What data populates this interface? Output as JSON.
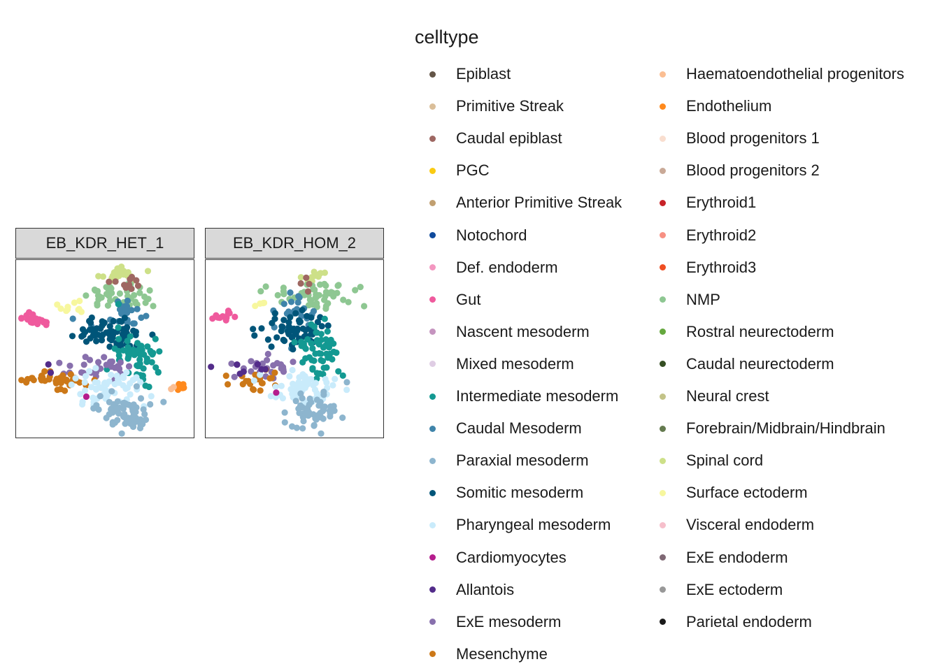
{
  "chart_data": {
    "type": "scatter",
    "facets": [
      "EB_KDR_HET_1",
      "EB_KDR_HOM_2"
    ],
    "legend": {
      "title": "celltype",
      "placement": "right",
      "entries": [
        {
          "label": "Epiblast",
          "color": "#635547"
        },
        {
          "label": "Primitive Streak",
          "color": "#DABE99"
        },
        {
          "label": "Caudal epiblast",
          "color": "#9E6762"
        },
        {
          "label": "PGC",
          "color": "#FACB12"
        },
        {
          "label": "Anterior Primitive Streak",
          "color": "#C19F70"
        },
        {
          "label": "Notochord",
          "color": "#0F4A9C"
        },
        {
          "label": "Def. endoderm",
          "color": "#F397C0"
        },
        {
          "label": "Gut",
          "color": "#EF5A9D"
        },
        {
          "label": "Nascent mesoderm",
          "color": "#C594BF"
        },
        {
          "label": "Mixed mesoderm",
          "color": "#DFCDE4"
        },
        {
          "label": "Intermediate mesoderm",
          "color": "#139992"
        },
        {
          "label": "Caudal Mesoderm",
          "color": "#3F84AA"
        },
        {
          "label": "Paraxial mesoderm",
          "color": "#8DB5CE"
        },
        {
          "label": "Somitic mesoderm",
          "color": "#005579"
        },
        {
          "label": "Pharyngeal mesoderm",
          "color": "#C9EBFB"
        },
        {
          "label": "Cardiomyocytes",
          "color": "#B51D8D"
        },
        {
          "label": "Allantois",
          "color": "#532C8A"
        },
        {
          "label": "ExE mesoderm",
          "color": "#8870AD"
        },
        {
          "label": "Mesenchyme",
          "color": "#CC7818"
        },
        {
          "label": "Haematoendothelial progenitors",
          "color": "#FBBE92"
        },
        {
          "label": "Endothelium",
          "color": "#FF891C"
        },
        {
          "label": "Blood progenitors 1",
          "color": "#F9DECF"
        },
        {
          "label": "Blood progenitors 2",
          "color": "#C9A997"
        },
        {
          "label": "Erythroid1",
          "color": "#C72228"
        },
        {
          "label": "Erythroid2",
          "color": "#F79083"
        },
        {
          "label": "Erythroid3",
          "color": "#EF4E22"
        },
        {
          "label": "NMP",
          "color": "#8EC792"
        },
        {
          "label": "Rostral neurectoderm",
          "color": "#65A83E"
        },
        {
          "label": "Caudal neurectoderm",
          "color": "#354E23"
        },
        {
          "label": "Neural crest",
          "color": "#C3C388"
        },
        {
          "label": "Forebrain/Midbrain/Hindbrain",
          "color": "#647A4F"
        },
        {
          "label": "Spinal cord",
          "color": "#CDE088"
        },
        {
          "label": "Surface ectoderm",
          "color": "#F7F79E"
        },
        {
          "label": "Visceral endoderm",
          "color": "#F6BFCB"
        },
        {
          "label": "ExE endoderm",
          "color": "#7F6874"
        },
        {
          "label": "ExE ectoderm",
          "color": "#989898"
        },
        {
          "label": "Parietal endoderm",
          "color": "#1A1A1A"
        }
      ]
    },
    "clusters": [
      {
        "celltype": "Spinal cord",
        "het": {
          "x": 0.57,
          "y": 0.08,
          "sx": 0.06,
          "sy": 0.025,
          "n": 28
        },
        "hom": {
          "x": 0.6,
          "y": 0.1,
          "sx": 0.05,
          "sy": 0.03,
          "n": 10
        }
      },
      {
        "celltype": "NMP",
        "het": {
          "x": 0.6,
          "y": 0.2,
          "sx": 0.11,
          "sy": 0.04,
          "n": 45
        },
        "hom": {
          "x": 0.6,
          "y": 0.19,
          "sx": 0.13,
          "sy": 0.035,
          "n": 50
        }
      },
      {
        "celltype": "Caudal epiblast",
        "het": {
          "x": 0.61,
          "y": 0.13,
          "sx": 0.05,
          "sy": 0.02,
          "n": 10
        },
        "hom": {
          "x": 0.55,
          "y": 0.14,
          "sx": 0.02,
          "sy": 0.02,
          "n": 4
        }
      },
      {
        "celltype": "Caudal Mesoderm",
        "het": {
          "x": 0.6,
          "y": 0.3,
          "sx": 0.07,
          "sy": 0.06,
          "n": 25
        },
        "hom": {
          "x": 0.5,
          "y": 0.28,
          "sx": 0.08,
          "sy": 0.07,
          "n": 25
        }
      },
      {
        "celltype": "Somitic mesoderm",
        "het": {
          "x": 0.53,
          "y": 0.41,
          "sx": 0.1,
          "sy": 0.05,
          "n": 70
        },
        "hom": {
          "x": 0.5,
          "y": 0.4,
          "sx": 0.1,
          "sy": 0.05,
          "n": 60
        }
      },
      {
        "celltype": "Intermediate mesoderm",
        "het": {
          "x": 0.68,
          "y": 0.54,
          "sx": 0.07,
          "sy": 0.07,
          "n": 55
        },
        "hom": {
          "x": 0.63,
          "y": 0.5,
          "sx": 0.07,
          "sy": 0.07,
          "n": 55
        }
      },
      {
        "celltype": "ExE mesoderm",
        "het": {
          "x": 0.44,
          "y": 0.6,
          "sx": 0.08,
          "sy": 0.03,
          "n": 30
        },
        "hom": {
          "x": 0.35,
          "y": 0.6,
          "sx": 0.09,
          "sy": 0.03,
          "n": 25
        }
      },
      {
        "celltype": "Mesenchyme",
        "het": {
          "x": 0.25,
          "y": 0.67,
          "sx": 0.09,
          "sy": 0.03,
          "n": 40
        },
        "hom": {
          "x": 0.28,
          "y": 0.67,
          "sx": 0.1,
          "sy": 0.03,
          "n": 20
        }
      },
      {
        "celltype": "Pharyngeal mesoderm",
        "het": {
          "x": 0.52,
          "y": 0.72,
          "sx": 0.1,
          "sy": 0.05,
          "n": 55
        },
        "hom": {
          "x": 0.53,
          "y": 0.72,
          "sx": 0.1,
          "sy": 0.05,
          "n": 60
        }
      },
      {
        "celltype": "Paraxial mesoderm",
        "het": {
          "x": 0.6,
          "y": 0.85,
          "sx": 0.08,
          "sy": 0.05,
          "n": 65
        },
        "hom": {
          "x": 0.6,
          "y": 0.85,
          "sx": 0.07,
          "sy": 0.05,
          "n": 55
        }
      },
      {
        "celltype": "Gut",
        "het": {
          "x": 0.11,
          "y": 0.33,
          "sx": 0.04,
          "sy": 0.015,
          "n": 18
        },
        "hom": {
          "x": 0.1,
          "y": 0.32,
          "sx": 0.03,
          "sy": 0.015,
          "n": 12
        }
      },
      {
        "celltype": "Surface ectoderm",
        "het": {
          "x": 0.3,
          "y": 0.26,
          "sx": 0.03,
          "sy": 0.015,
          "n": 10
        },
        "hom": {
          "x": 0.31,
          "y": 0.25,
          "sx": 0.02,
          "sy": 0.01,
          "n": 4
        }
      },
      {
        "celltype": "Endothelium",
        "het": {
          "x": 0.93,
          "y": 0.71,
          "sx": 0.02,
          "sy": 0.01,
          "n": 8
        },
        "hom": {
          "x": 0.88,
          "y": 0.6,
          "sx": 0.01,
          "sy": 0.01,
          "n": 0
        }
      },
      {
        "celltype": "Haematoendothelial progenitors",
        "het": {
          "x": 0.87,
          "y": 0.7,
          "sx": 0.01,
          "sy": 0.01,
          "n": 2
        },
        "hom": {
          "x": 0.87,
          "y": 0.6,
          "sx": 0.01,
          "sy": 0.01,
          "n": 0
        }
      },
      {
        "celltype": "Cardiomyocytes",
        "het": {
          "x": 0.4,
          "y": 0.76,
          "sx": 0.005,
          "sy": 0.005,
          "n": 1
        },
        "hom": {
          "x": 0.4,
          "y": 0.75,
          "sx": 0.005,
          "sy": 0.005,
          "n": 1
        }
      },
      {
        "celltype": "Allantois",
        "het": {
          "x": 0.2,
          "y": 0.6,
          "sx": 0.02,
          "sy": 0.02,
          "n": 2
        },
        "hom": {
          "x": 0.24,
          "y": 0.6,
          "sx": 0.1,
          "sy": 0.02,
          "n": 8
        }
      }
    ]
  }
}
